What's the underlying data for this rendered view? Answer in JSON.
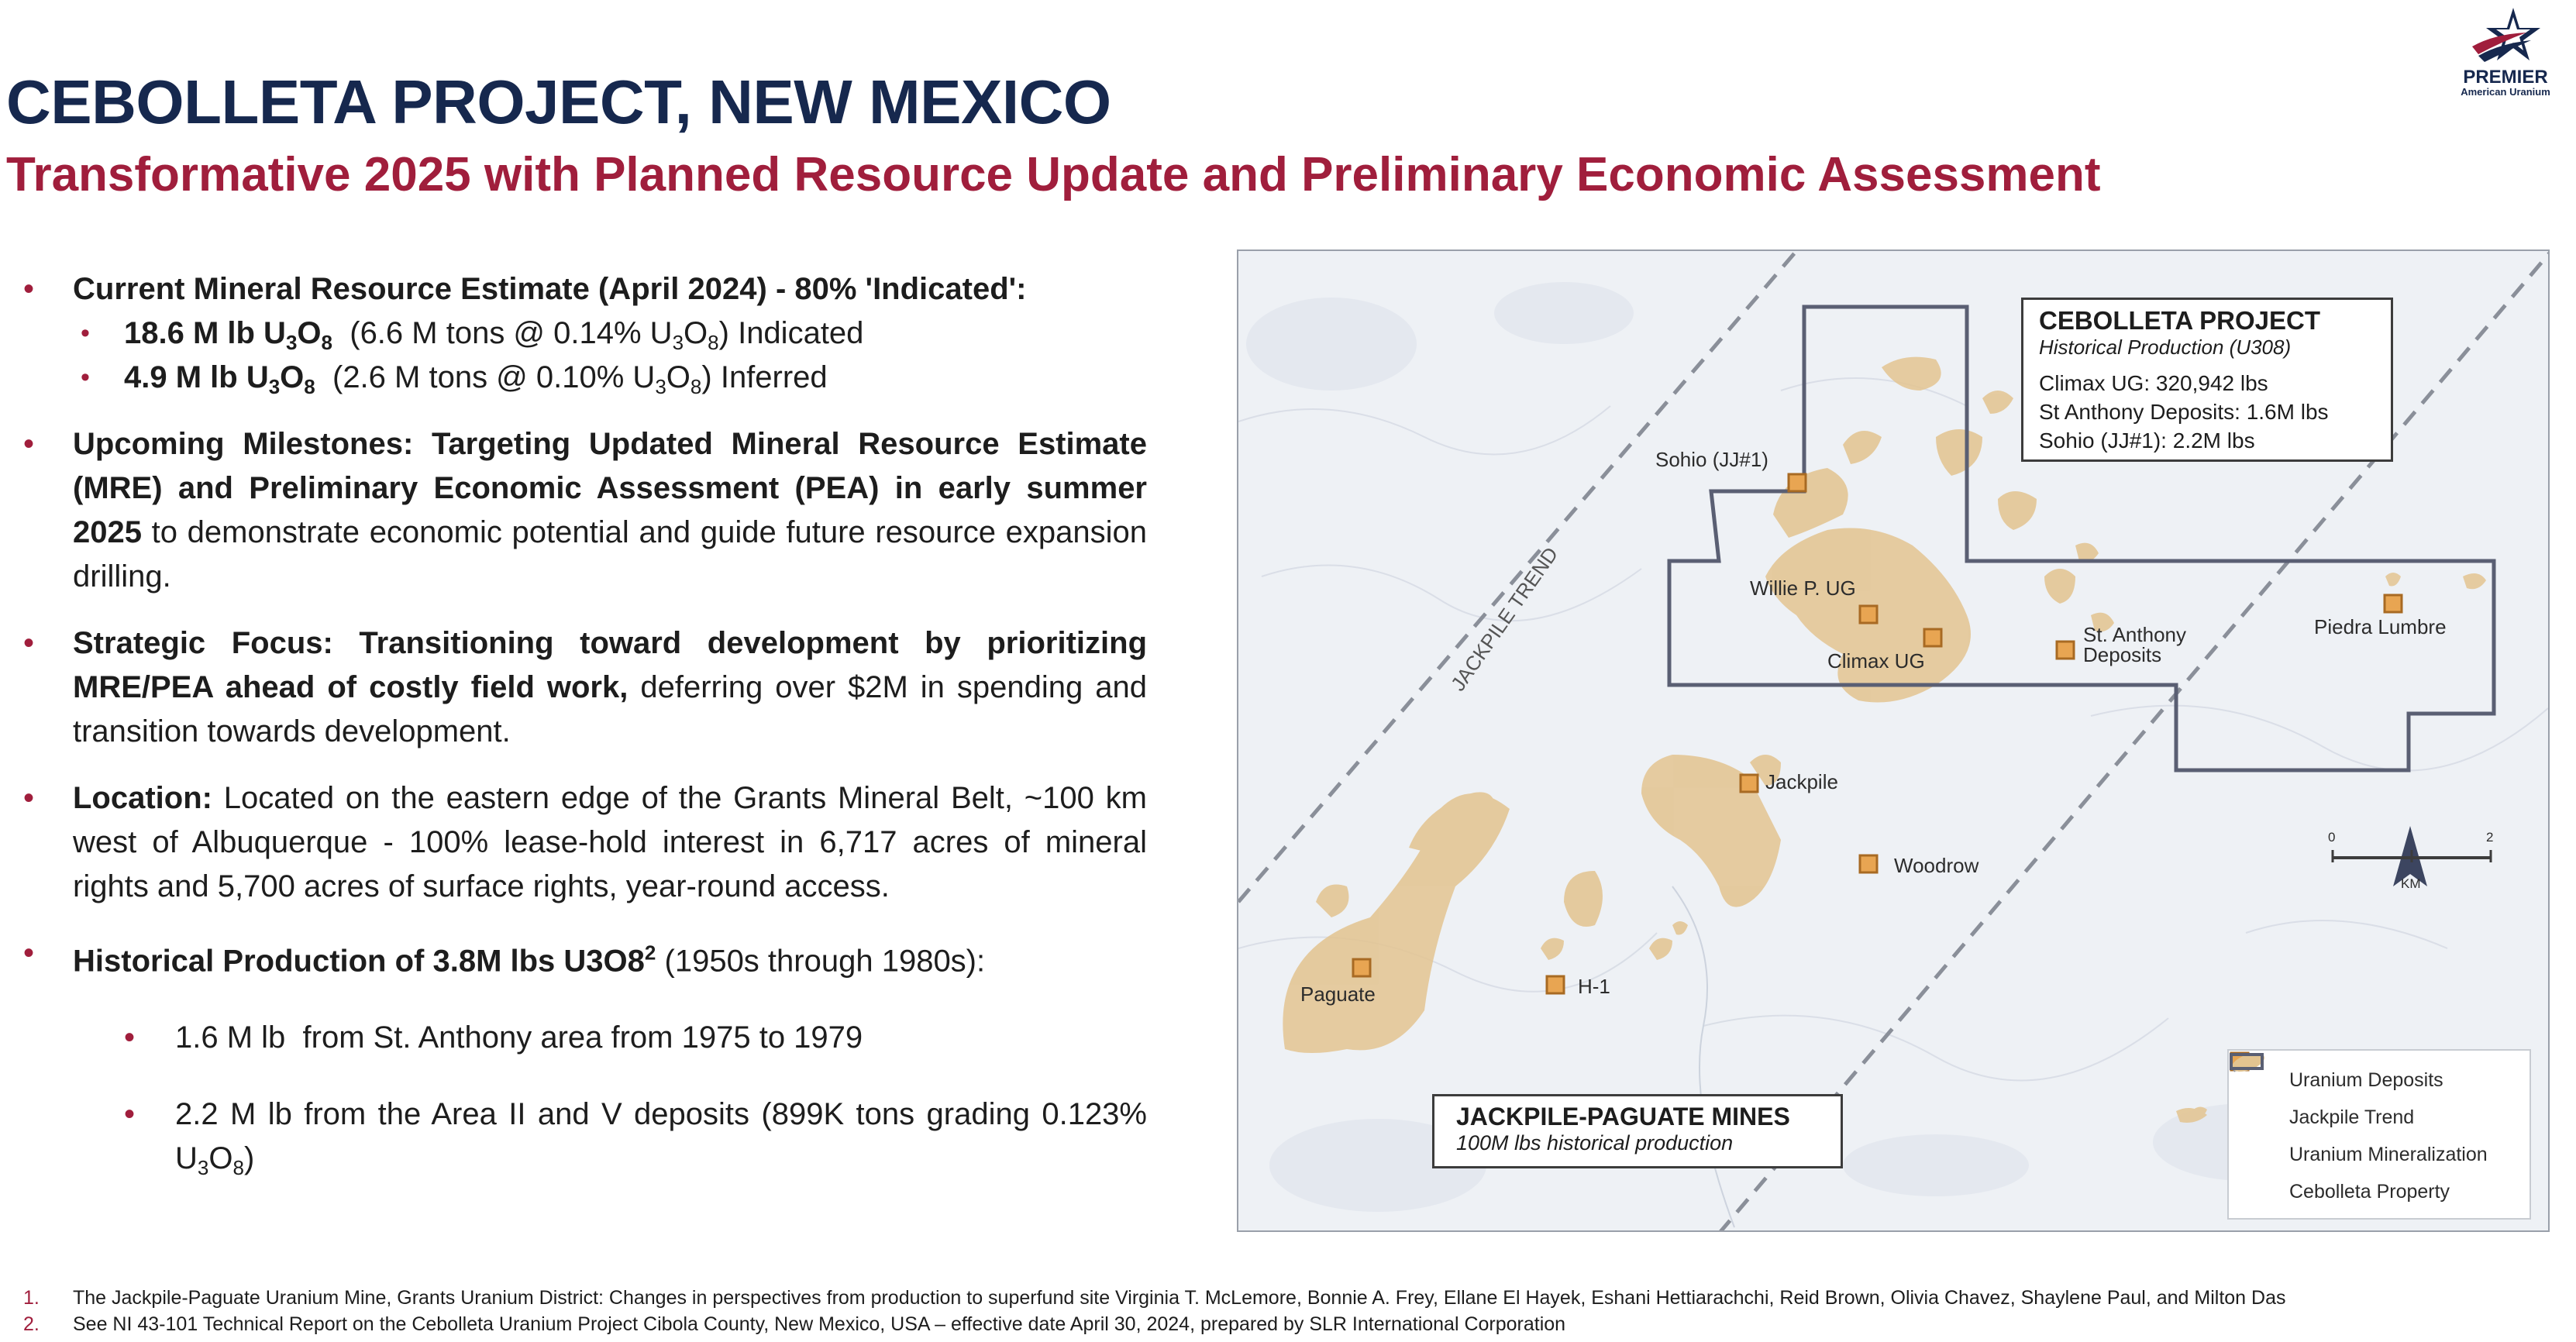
{
  "header": {
    "title": "CEBOLLETA PROJECT, NEW MEXICO",
    "subtitle": "Transformative 2025 with Planned Resource Update and Preliminary Economic Assessment"
  },
  "logo": {
    "name": "PREMIER",
    "sub": "American Uranium",
    "colors": {
      "navy": "#16284e",
      "red": "#a01e3c"
    }
  },
  "bullets": {
    "b1_heading": "Current Mineral Resource Estimate (April 2024) - 80% 'Indicated':",
    "b1_s1_bold": "18.6 M lb U",
    "b1_s1_bold_sub1": "3",
    "b1_s1_bold_mid": "O",
    "b1_s1_bold_sub2": "8",
    "b1_s1_text_a": "  (6.6 M tons @ 0.14% U",
    "b1_s1_sub3": "3",
    "b1_s1_text_b": "O",
    "b1_s1_sub4": "8",
    "b1_s1_text_c": ") Indicated",
    "b1_s2_bold": "4.9 M lb U",
    "b1_s2_bold_sub1": "3",
    "b1_s2_bold_mid": "O",
    "b1_s2_bold_sub2": "8",
    "b1_s2_text_a": "  (2.6 M tons @ 0.10% U",
    "b1_s2_sub3": "3",
    "b1_s2_text_b": "O",
    "b1_s2_sub4": "8",
    "b1_s2_text_c": ") Inferred",
    "b2_bold": "Upcoming Milestones: Targeting Updated Mineral Resource Estimate (MRE) and Preliminary Economic Assessment (PEA) in early summer 2025",
    "b2_text": " to demonstrate economic potential and guide future resource expansion drilling.",
    "b3_bold": "Strategic Focus: Transitioning toward development by prioritizing MRE/PEA ahead of costly field work,",
    "b3_text": " deferring over $2M in spending and transition towards development.",
    "b4_bold": "Location:",
    "b4_text": " Located on the eastern edge of the Grants Mineral Belt, ~100 km west of Albuquerque - 100% lease-hold interest in 6,717 acres of mineral rights and 5,700 acres of surface rights, year-round access.",
    "b5_bold": "Historical Production of 3.8M lbs U3O8",
    "b5_sup": "2",
    "b5_text": " (1950s through 1980s):",
    "b5_s1": "1.6 M lb  from St. Anthony area from 1975 to 1979",
    "b5_s2_a": "2.2 M lb from the Area II and V deposits (899K tons grading 0.123% U",
    "b5_s2_sub1": "3",
    "b5_s2_b": "O",
    "b5_s2_sub2": "8",
    "b5_s2_c": ")"
  },
  "map": {
    "info_box": {
      "title": "CEBOLLETA PROJECT",
      "subtitle": "Historical Production (U308)",
      "lines": [
        "Climax UG: 320,942 lbs",
        "St Anthony Deposits: 1.6M lbs",
        "Sohio (JJ#1): 2.2M lbs"
      ]
    },
    "jackpile_box": {
      "title": "JACKPILE-PAGUATE MINES",
      "subtitle": "100M lbs historical production"
    },
    "trend_label": "JACKPILE TREND",
    "deposits": {
      "sohio": "Sohio (JJ#1)",
      "willie": "Willie P. UG",
      "climax": "Climax UG",
      "st_anthony_1": "St. Anthony",
      "st_anthony_2": "Deposits",
      "piedra": "Piedra Lumbre",
      "jackpile": "Jackpile",
      "woodrow": "Woodrow",
      "paguate": "Paguate",
      "h1": "H-1"
    },
    "legend": [
      "Uranium Deposits",
      "Jackpile Trend",
      "Uranium Mineralization",
      "Cebolleta Property"
    ],
    "scale": {
      "left": "0",
      "right": "2",
      "unit": "KM"
    },
    "colors": {
      "deposit": "#e8a552",
      "mineralization": "#e3c490",
      "property": "#5a5f73"
    }
  },
  "footnotes": [
    {
      "num": "1.",
      "text": "The Jackpile-Paguate Uranium Mine, Grants Uranium District: Changes in perspectives from production to superfund site Virginia T. McLemore, Bonnie A. Frey, Ellane El Hayek, Eshani Hettiarachchi, Reid Brown, Olivia Chavez, Shaylene Paul, and Milton Das"
    },
    {
      "num": "2.",
      "text": "See NI 43-101 Technical Report on the Cebolleta Uranium Project Cibola County, New Mexico, USA – effective date April 30, 2024, prepared by SLR International Corporation"
    }
  ]
}
